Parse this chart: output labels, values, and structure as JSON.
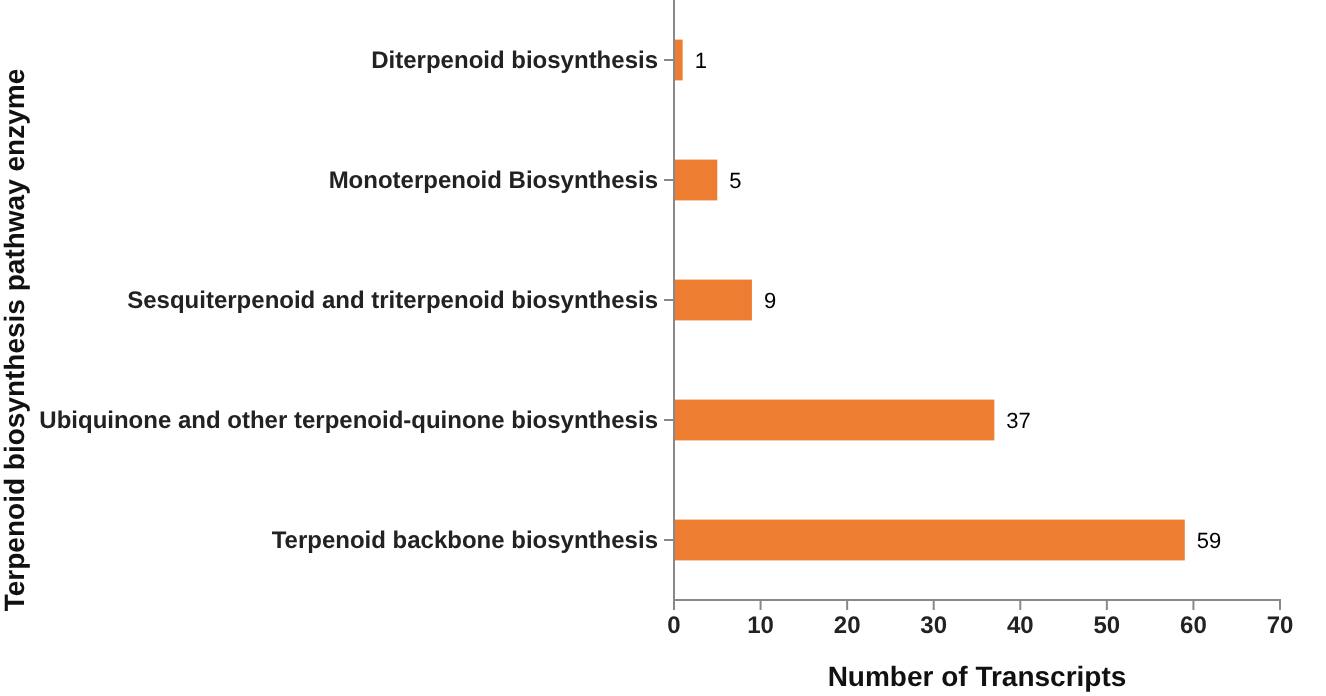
{
  "chart_data": {
    "type": "bar",
    "orientation": "horizontal",
    "categories": [
      "Diterpenoid biosynthesis",
      "Monoterpenoid Biosynthesis",
      "Sesquiterpenoid and triterpenoid biosynthesis",
      "Ubiquinone and other terpenoid-quinone biosynthesis",
      "Terpenoid backbone biosynthesis"
    ],
    "values": [
      1,
      5,
      9,
      37,
      59
    ],
    "color": "#ed7d31",
    "data_labels": true,
    "xlim": [
      0,
      70
    ],
    "xticks": [
      0,
      10,
      20,
      30,
      40,
      50,
      60,
      70
    ],
    "xlabel": "Number of Transcripts",
    "ylabel": "Terpenoid biosynthesis pathway enzyme"
  }
}
